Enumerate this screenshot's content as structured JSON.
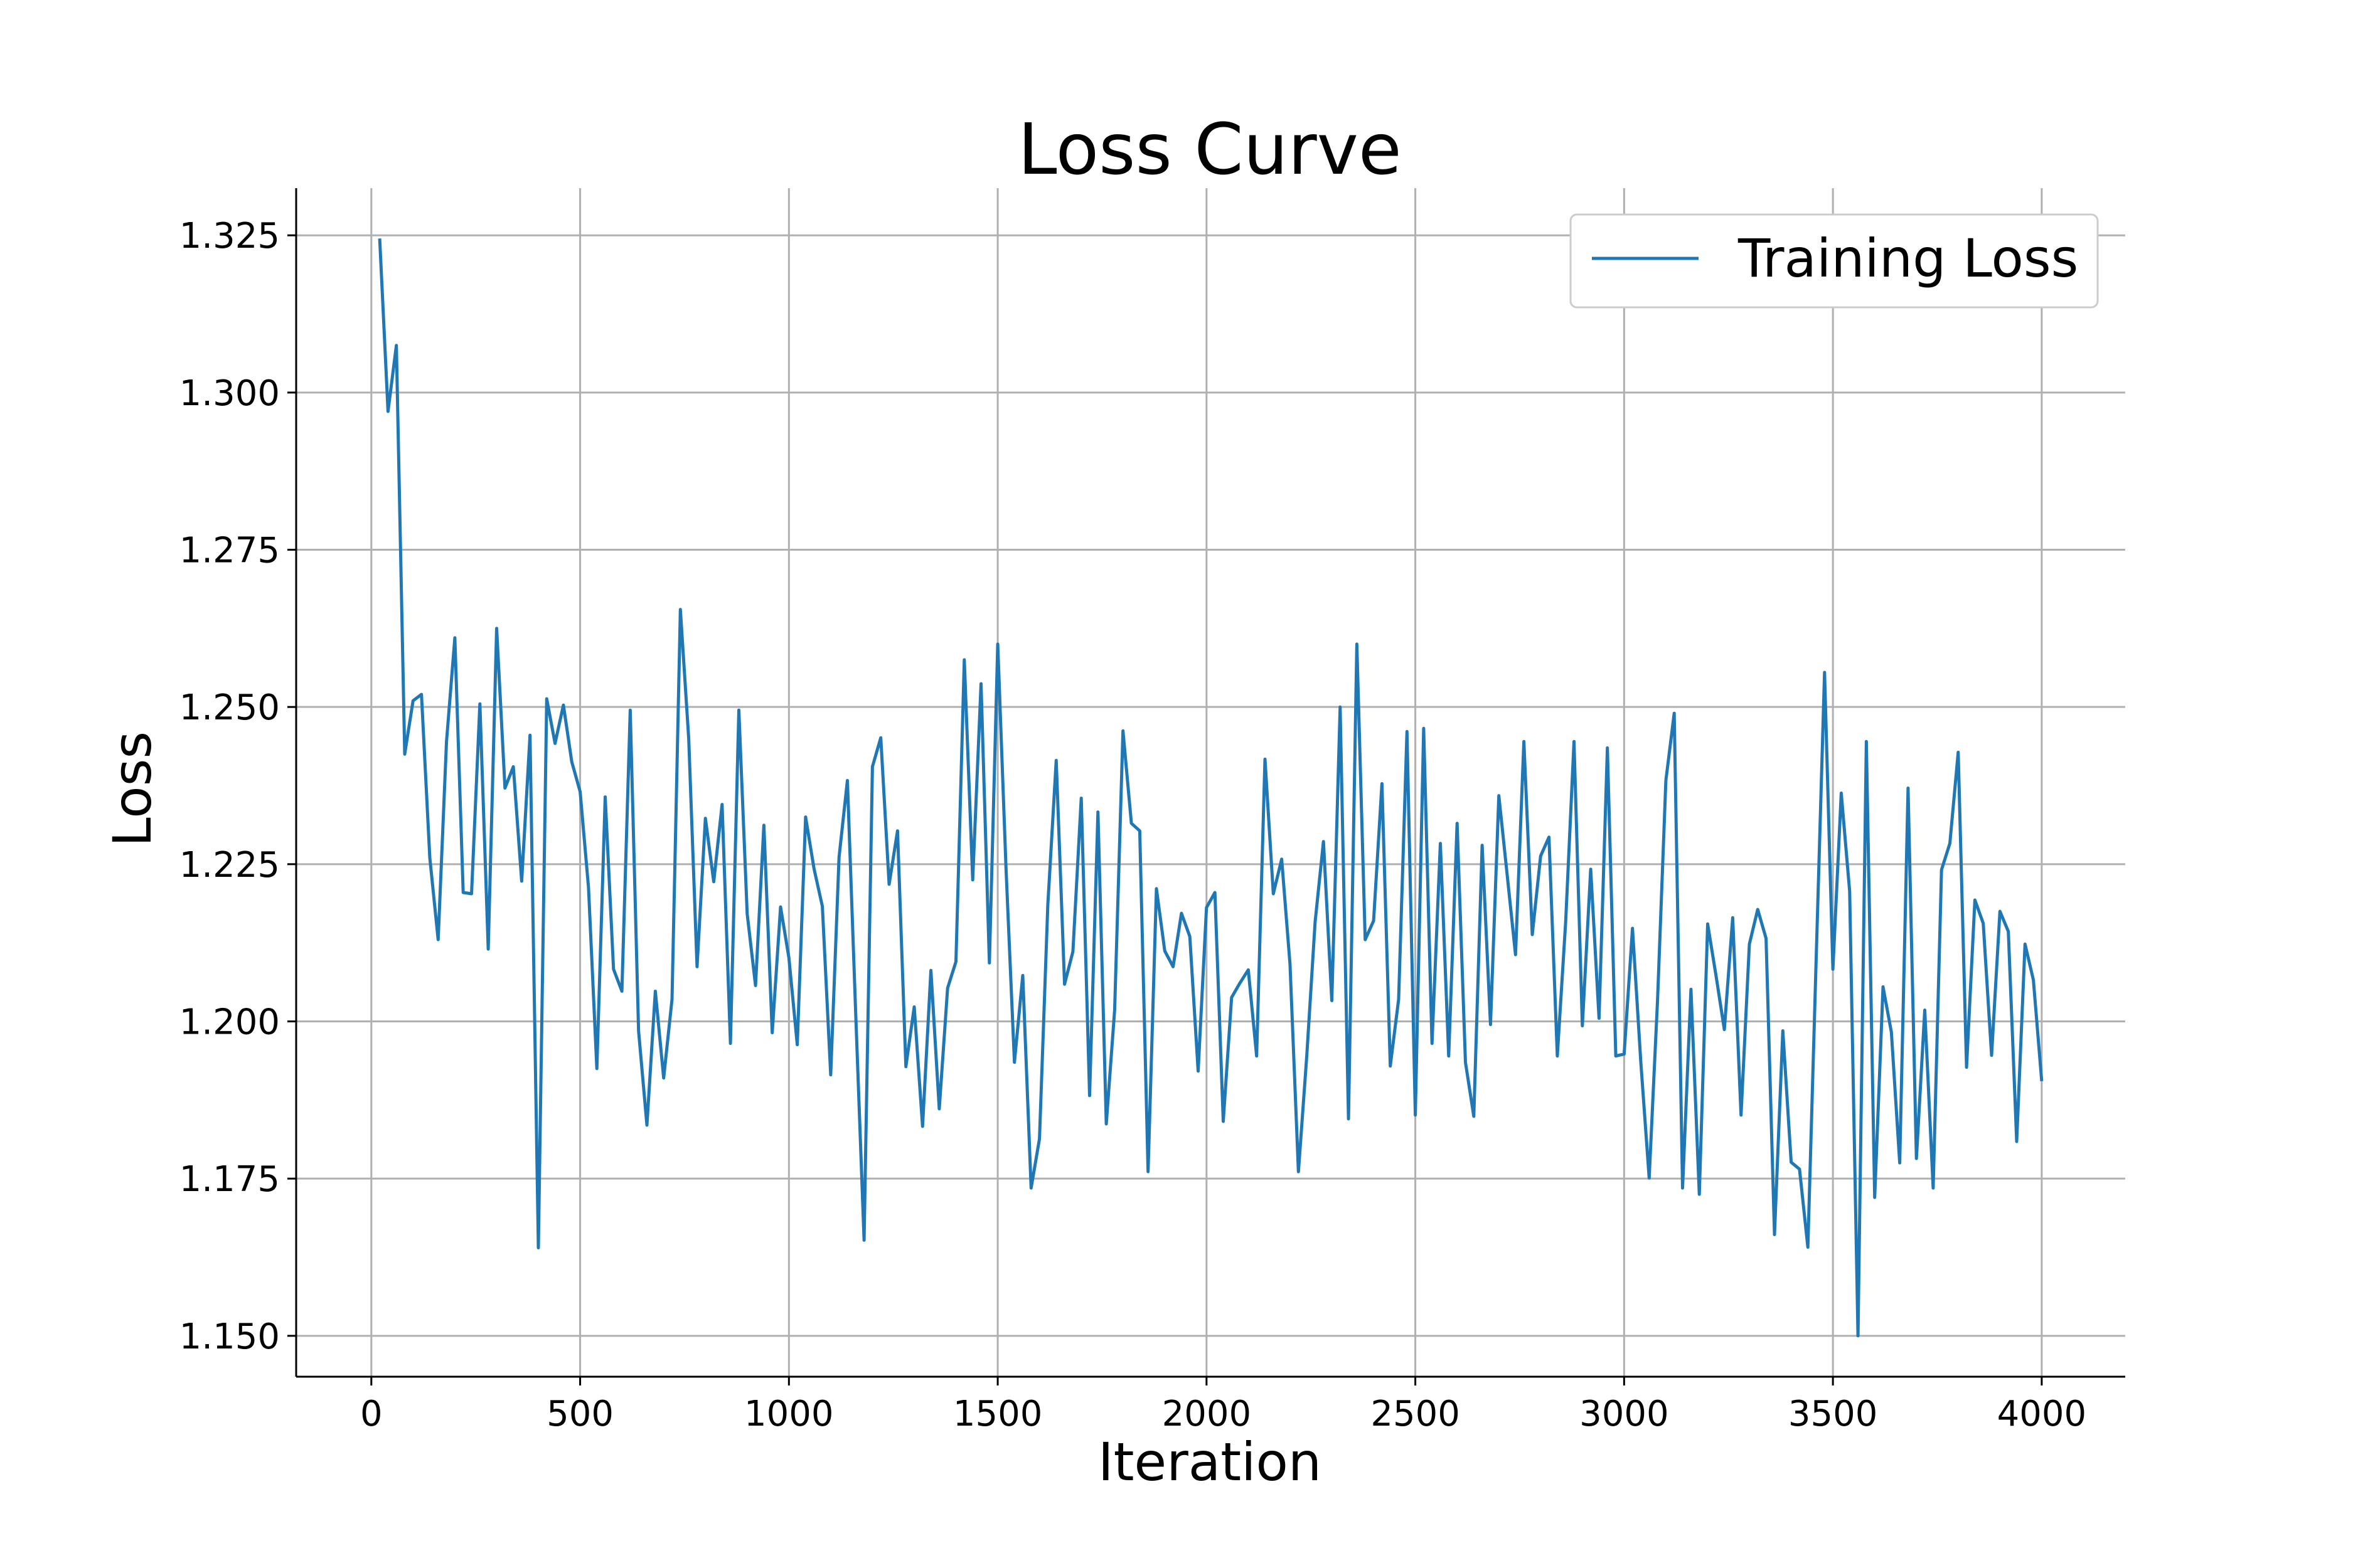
{
  "chart_data": {
    "type": "line",
    "title": "Loss Curve",
    "xlabel": "Iteration",
    "ylabel": "Loss",
    "xlim": [
      -180,
      4200
    ],
    "ylim": [
      1.1435,
      1.3325
    ],
    "xticks": [
      0,
      500,
      1000,
      1500,
      2000,
      2500,
      3000,
      3500,
      4000
    ],
    "xtick_labels": [
      "0",
      "500",
      "1000",
      "1500",
      "2000",
      "2500",
      "3000",
      "3500",
      "4000"
    ],
    "yticks": [
      1.15,
      1.175,
      1.2,
      1.225,
      1.25,
      1.275,
      1.3,
      1.325
    ],
    "ytick_labels": [
      "1.150",
      "1.175",
      "1.200",
      "1.225",
      "1.250",
      "1.275",
      "1.300",
      "1.325"
    ],
    "grid": true,
    "legend": {
      "placement": "top-right",
      "entries": [
        "Training Loss"
      ]
    },
    "series": [
      {
        "name": "Training Loss",
        "color": "#1f77b4",
        "x": [
          20,
          40,
          60,
          80,
          100,
          120,
          140,
          160,
          180,
          200,
          220,
          240,
          260,
          280,
          300,
          320,
          340,
          360,
          380,
          400,
          420,
          440,
          460,
          480,
          500,
          520,
          540,
          560,
          580,
          600,
          620,
          640,
          660,
          680,
          700,
          720,
          740,
          760,
          780,
          800,
          820,
          840,
          860,
          880,
          900,
          920,
          940,
          960,
          980,
          1000,
          1020,
          1040,
          1060,
          1080,
          1100,
          1120,
          1140,
          1160,
          1180,
          1200,
          1220,
          1240,
          1260,
          1280,
          1300,
          1320,
          1340,
          1360,
          1380,
          1400,
          1420,
          1440,
          1460,
          1480,
          1500,
          1520,
          1540,
          1560,
          1580,
          1600,
          1620,
          1640,
          1660,
          1680,
          1700,
          1720,
          1740,
          1760,
          1780,
          1800,
          1820,
          1840,
          1860,
          1880,
          1900,
          1920,
          1940,
          1960,
          1980,
          2000,
          2020,
          2040,
          2060,
          2080,
          2100,
          2120,
          2140,
          2160,
          2180,
          2200,
          2220,
          2240,
          2260,
          2280,
          2300,
          2320,
          2340,
          2360,
          2380,
          2400,
          2420,
          2440,
          2460,
          2480,
          2500,
          2520,
          2540,
          2560,
          2580,
          2600,
          2620,
          2640,
          2660,
          2680,
          2700,
          2720,
          2740,
          2760,
          2780,
          2800,
          2820,
          2840,
          2860,
          2880,
          2900,
          2920,
          2940,
          2960,
          2980,
          3000,
          3020,
          3040,
          3060,
          3080,
          3100,
          3120,
          3140,
          3160,
          3180,
          3200,
          3220,
          3240,
          3260,
          3280,
          3300,
          3320,
          3340,
          3360,
          3380,
          3400,
          3420,
          3440,
          3460,
          3480,
          3500,
          3520,
          3540,
          3560,
          3580,
          3600,
          3620,
          3640,
          3660,
          3680,
          3700,
          3720,
          3740,
          3760,
          3780,
          3800,
          3820,
          3840,
          3860,
          3880,
          3900,
          3920,
          3940,
          3960,
          3980,
          4000
        ],
        "y": [
          1.3245,
          1.297,
          1.3075,
          1.2425,
          1.251,
          1.252,
          1.226,
          1.213,
          1.2445,
          1.261,
          1.2205,
          1.2203,
          1.2505,
          1.2115,
          1.2625,
          1.2371,
          1.2405,
          1.2223,
          1.2455,
          1.164,
          1.2513,
          1.2442,
          1.2503,
          1.2413,
          1.2365,
          1.2213,
          1.1925,
          1.2357,
          1.2083,
          1.2048,
          1.2495,
          1.1985,
          1.1835,
          1.2048,
          1.191,
          1.2035,
          1.2655,
          1.245,
          1.2087,
          1.2323,
          1.2222,
          1.2345,
          1.1965,
          1.2495,
          1.2171,
          1.2057,
          1.2312,
          1.1982,
          1.2182,
          1.2101,
          1.1963,
          1.2325,
          1.2243,
          1.2183,
          1.1915,
          1.2261,
          1.2383,
          1.2011,
          1.1652,
          1.2405,
          1.2451,
          1.2218,
          1.2303,
          1.1928,
          1.2023,
          1.1833,
          1.2081,
          1.1861,
          1.2053,
          1.2095,
          1.2575,
          1.2225,
          1.2537,
          1.2093,
          1.26,
          1.2241,
          1.1935,
          1.2073,
          1.1735,
          1.1813,
          1.2185,
          1.2415,
          1.2059,
          1.2111,
          1.2355,
          1.1882,
          1.2333,
          1.1837,
          1.2018,
          1.2462,
          1.2315,
          1.2303,
          1.1761,
          1.2211,
          1.2112,
          1.2087,
          1.2172,
          1.2135,
          1.1921,
          1.2181,
          1.2205,
          1.1841,
          1.2038,
          1.2061,
          1.2082,
          1.1945,
          1.2417,
          1.2203,
          1.2258,
          1.2091,
          1.1761,
          1.1945,
          1.2158,
          1.2286,
          1.2033,
          1.25,
          1.1845,
          1.26,
          1.213,
          1.216,
          1.2378,
          1.1929,
          1.2035,
          1.2461,
          1.1851,
          1.2466,
          1.1965,
          1.2283,
          1.1945,
          1.2315,
          1.1935,
          1.1849,
          1.228,
          1.1995,
          1.2359,
          1.2233,
          1.2106,
          1.2445,
          1.2138,
          1.2263,
          1.2293,
          1.1945,
          1.2158,
          1.2445,
          1.1993,
          1.2242,
          1.2005,
          1.2435,
          1.1945,
          1.1948,
          1.2148,
          1.1935,
          1.1751,
          1.2033,
          1.2383,
          1.249,
          1.1735,
          1.2051,
          1.1725,
          1.2155,
          1.2073,
          1.1987,
          1.2165,
          1.1851,
          1.2123,
          1.2178,
          1.2132,
          1.1661,
          1.1985,
          1.1776,
          1.1765,
          1.1641,
          1.2101,
          1.2555,
          1.2083,
          1.2363,
          1.2207,
          1.15,
          1.2445,
          1.172,
          1.2055,
          1.1983,
          1.1775,
          1.2371,
          1.1782,
          1.2018,
          1.1735,
          1.2241,
          1.2283,
          1.2428,
          1.1927,
          1.2193,
          1.2156,
          1.1946,
          1.2175,
          1.2143,
          1.1809,
          1.2123,
          1.2066,
          1.1905
        ]
      }
    ]
  }
}
